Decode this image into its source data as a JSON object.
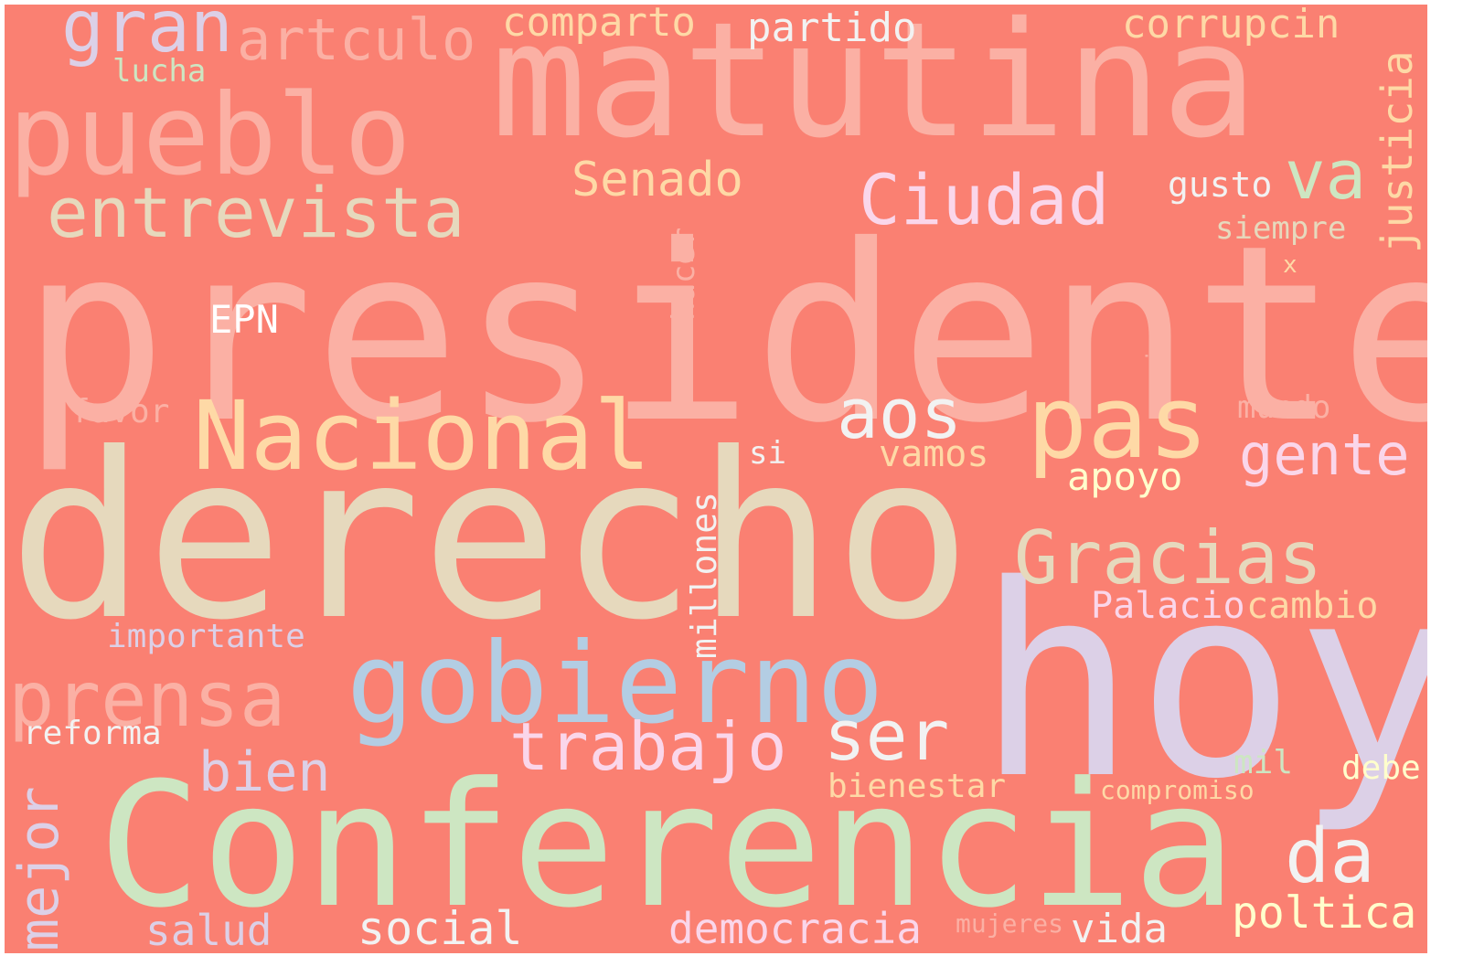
{
  "cloud": {
    "background": "#FA8072",
    "words": [
      {
        "text": "presidente",
        "color": "#FBB0A4"
      },
      {
        "text": "derecho",
        "color": "#E6D9BD"
      },
      {
        "text": "hoy",
        "color": "#DCD0E7"
      },
      {
        "text": "Conferencia",
        "color": "#CDE6C2"
      },
      {
        "text": "matutina",
        "color": "#FBB0A4"
      },
      {
        "text": "pueblo",
        "color": "#FBB0A4"
      },
      {
        "text": "gobierno",
        "color": "#B3CDE3"
      },
      {
        "text": "Nacional",
        "color": "#FED9A6"
      },
      {
        "text": "pas",
        "color": "#FED9A6"
      },
      {
        "text": "prensa",
        "color": "#FBB0A4"
      },
      {
        "text": "Gracias",
        "color": "#E6D9BD"
      },
      {
        "text": "entrevista",
        "color": "#E6D9BD"
      },
      {
        "text": "Ciudad",
        "color": "#FAD6EA"
      },
      {
        "text": "aos",
        "color": "#F2F2F2"
      },
      {
        "text": "trabajo",
        "color": "#FAD6EA"
      },
      {
        "text": "ser",
        "color": "#F2F2F2"
      },
      {
        "text": "da",
        "color": "#F2F2F2"
      },
      {
        "text": "gran",
        "color": "#DCD0E7"
      },
      {
        "text": "va",
        "color": "#CDE6C2"
      },
      {
        "text": "gente",
        "color": "#FAD6EA"
      },
      {
        "text": "artculo",
        "color": "#FBB0A4"
      },
      {
        "text": "bien",
        "color": "#DCD0E7"
      },
      {
        "text": "Senado",
        "color": "#FED9A6"
      },
      {
        "text": "mejor",
        "color": "#DCD0E7"
      },
      {
        "text": "poltica",
        "color": "#FFFFCC"
      },
      {
        "text": "social",
        "color": "#F2F2F2"
      },
      {
        "text": "democracia",
        "color": "#FAD6EA"
      },
      {
        "text": "corrupcin",
        "color": "#FED9A6"
      },
      {
        "text": "justicia",
        "color": "#FED9A6"
      },
      {
        "text": "partido",
        "color": "#F2F2F2"
      },
      {
        "text": "comparto",
        "color": "#FED9A6"
      },
      {
        "text": "vida",
        "color": "#F2F2F2"
      },
      {
        "text": "salud",
        "color": "#DCD0E7"
      },
      {
        "text": "apoyo",
        "color": "#FFFFCC"
      },
      {
        "text": "Palacio",
        "color": "#FAD6EA"
      },
      {
        "text": "cambio",
        "color": "#FED9A6"
      },
      {
        "text": "vamos",
        "color": "#FED9A6"
      },
      {
        "text": "EPN",
        "color": "#FFFFFF"
      },
      {
        "text": "importante",
        "color": "#DCD0E7"
      },
      {
        "text": "reforma",
        "color": "#F2F2F2"
      },
      {
        "text": "millones",
        "color": "#F2F2F2"
      },
      {
        "text": "bienestar",
        "color": "#FED9A6"
      },
      {
        "text": "debe",
        "color": "#FFFFCC"
      },
      {
        "text": "mil",
        "color": "#CDE6C2"
      },
      {
        "text": "gusto",
        "color": "#F2F2F2"
      },
      {
        "text": "siempre",
        "color": "#E6D9BD"
      },
      {
        "text": "mundo",
        "color": "#FBB0A4"
      },
      {
        "text": "favor",
        "color": "#FBB0A4"
      },
      {
        "text": "lucha",
        "color": "#CDE6C2"
      },
      {
        "text": "hacer",
        "color": "#FBB0A4"
      },
      {
        "text": "si",
        "color": "#F2F2F2"
      },
      {
        "text": "compromiso",
        "color": "#FED9A6"
      },
      {
        "text": "mujeres",
        "color": "#FBB0A4"
      },
      {
        "text": "vivo",
        "color": "#FBB0A4"
      },
      {
        "text": "x",
        "color": "#FED9A6"
      }
    ]
  }
}
